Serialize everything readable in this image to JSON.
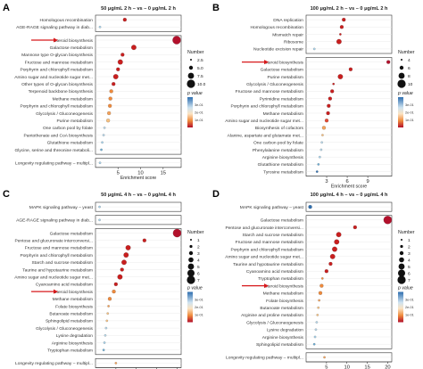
{
  "chart_data": [
    {
      "type": "scatter",
      "panel_label": "A",
      "title": "50 μg/mL 2 h – vs – 0 μg/mL 2 h",
      "xlabel": "Enrichment score",
      "xlim": [
        0,
        19
      ],
      "xticks": [
        5,
        10,
        15
      ],
      "highlight": "Steroid biosynthesis",
      "groups": [
        {
          "points": [
            {
              "label": "Homologous recombination",
              "x": 6.5,
              "size": 2,
              "color": "#c81e1e"
            },
            {
              "label": "AGE-RAGE signaling pathway in diab...",
              "x": 1.0,
              "size": 1,
              "color": "#a6d3ec"
            }
          ]
        },
        {
          "points": [
            {
              "label": "Steroid biosynthesis",
              "x": 18.0,
              "size": 5,
              "color": "#b2102b"
            },
            {
              "label": "Galactose metabolism",
              "x": 8.5,
              "size": 3,
              "color": "#c81e1e"
            },
            {
              "label": "Mannose type O-glycan biosynthesis",
              "x": 6.0,
              "size": 2,
              "color": "#c81e1e"
            },
            {
              "label": "Fructose and mannose metabolism",
              "x": 5.5,
              "size": 3,
              "color": "#c81e1e"
            },
            {
              "label": "Porphyrin and chlorophyll metabolism",
              "x": 5.0,
              "size": 2,
              "color": "#c81e1e"
            },
            {
              "label": "Amino sugar and nucleotide sugar met...",
              "x": 4.5,
              "size": 3,
              "color": "#c81e1e"
            },
            {
              "label": "Other types of O-glycan biosynthesis",
              "x": 4.0,
              "size": 2,
              "color": "#c81e1e"
            },
            {
              "label": "Terpenoid backbone biosynthesis",
              "x": 3.5,
              "size": 2,
              "color": "#ef8a3c"
            },
            {
              "label": "Methane metabolism",
              "x": 3.3,
              "size": 2,
              "color": "#ef8a3c"
            },
            {
              "label": "Porphyrin and chlorophyll metabolism",
              "x": 3.2,
              "size": 2,
              "color": "#ef8a3c"
            },
            {
              "label": "Glycolysis / Gluconeogenesis",
              "x": 3.0,
              "size": 2,
              "color": "#f4a25a"
            },
            {
              "label": "Purine metabolism",
              "x": 2.8,
              "size": 2,
              "color": "#f6c080"
            },
            {
              "label": "One carbon pool by folate",
              "x": 2.0,
              "size": 1,
              "color": "#b6d7ea"
            },
            {
              "label": "Pantothenate and CoA biosynthesis",
              "x": 1.8,
              "size": 1,
              "color": "#b6d7ea"
            },
            {
              "label": "Glutathione metabolism",
              "x": 1.5,
              "size": 1,
              "color": "#a6d3ec"
            },
            {
              "label": "Glycine, serine and threonine metaboli...",
              "x": 1.3,
              "size": 1,
              "color": "#6aaed6"
            }
          ]
        },
        {
          "points": [
            {
              "label": "Longevity regulating pathway – multipl...",
              "x": 1.0,
              "size": 1,
              "color": "#a6d3ec"
            }
          ]
        }
      ],
      "legend_size": {
        "title": "Number",
        "values": [
          "2.5",
          "5.0",
          "7.5",
          "10.0"
        ]
      },
      "legend_color": {
        "title": "p value",
        "ticks": [
          "1e-01",
          "2e-01",
          "3e-01"
        ]
      }
    },
    {
      "type": "scatter",
      "panel_label": "B",
      "title": "100 μg/mL 2 h – vs – 0 μg/mL 2 h",
      "xlabel": "Enrichment score",
      "xlim": [
        0,
        12.5
      ],
      "xticks": [
        3,
        6,
        9
      ],
      "highlight": "Steroid biosynthesis",
      "groups": [
        {
          "points": [
            {
              "label": "DNA replication",
              "x": 5.5,
              "size": 2,
              "color": "#c81e1e"
            },
            {
              "label": "Homologous recombination",
              "x": 5.2,
              "size": 2,
              "color": "#c81e1e"
            },
            {
              "label": "Mismatch repair",
              "x": 5.0,
              "size": 1,
              "color": "#c81e1e"
            },
            {
              "label": "Ribosome",
              "x": 4.8,
              "size": 3,
              "color": "#c81e1e"
            },
            {
              "label": "Nucleotide excision repair",
              "x": 1.2,
              "size": 1,
              "color": "#a6d3ec"
            }
          ]
        },
        {
          "points": [
            {
              "label": "Steroid biosynthesis",
              "x": 12.0,
              "size": 2,
              "color": "#b2102b"
            },
            {
              "label": "Galactose metabolism",
              "x": 6.5,
              "size": 2,
              "color": "#c81e1e"
            },
            {
              "label": "Purine metabolism",
              "x": 5.0,
              "size": 3,
              "color": "#c81e1e"
            },
            {
              "label": "Glycolysis / Gluconeogenesis",
              "x": 4.0,
              "size": 1,
              "color": "#c81e1e"
            },
            {
              "label": "Fructose and mannose metabolism",
              "x": 3.8,
              "size": 2,
              "color": "#c81e1e"
            },
            {
              "label": "Pyrimidine metabolism",
              "x": 3.5,
              "size": 2,
              "color": "#c81e1e"
            },
            {
              "label": "Porphyrin and chlorophyll metabolism",
              "x": 3.3,
              "size": 2,
              "color": "#c81e1e"
            },
            {
              "label": "Methane metabolism",
              "x": 3.2,
              "size": 2,
              "color": "#c81e1e"
            },
            {
              "label": "Amino sugar and nucleotide sugar met...",
              "x": 3.0,
              "size": 2,
              "color": "#e34a33"
            },
            {
              "label": "Biosynthesis of cofactors",
              "x": 2.6,
              "size": 2,
              "color": "#f4a25a"
            },
            {
              "label": "Alanine, aspartate and glutamate met...",
              "x": 2.4,
              "size": 1,
              "color": "#f6c080"
            },
            {
              "label": "One carbon pool by folate",
              "x": 2.3,
              "size": 1,
              "color": "#b6d7ea"
            },
            {
              "label": "Phenylalanine metabolism",
              "x": 2.2,
              "size": 1,
              "color": "#b6d7ea"
            },
            {
              "label": "Arginine biosynthesis",
              "x": 2.0,
              "size": 1,
              "color": "#a6d3ec"
            },
            {
              "label": "Glutathione metabolism",
              "x": 1.8,
              "size": 1,
              "color": "#6aaed6"
            },
            {
              "label": "Tyrosine metabolism",
              "x": 1.6,
              "size": 1,
              "color": "#2f6fb0"
            }
          ]
        }
      ],
      "legend_size": {
        "title": "Number",
        "values": [
          "4",
          "6",
          "8",
          "10"
        ]
      },
      "legend_color": {
        "title": "p value",
        "ticks": [
          "1e-01",
          "2e-01",
          "3e-01"
        ]
      }
    },
    {
      "type": "scatter",
      "panel_label": "C",
      "title": "50 μg/mL 4 h – vs – 0 μg/mL 4 h",
      "xlabel": "Enrichment score",
      "xlim": [
        0,
        21
      ],
      "xticks": [
        5,
        10,
        15,
        20
      ],
      "highlight": "Steroid biosynthesis",
      "groups": [
        {
          "points": [
            {
              "label": "MAPK signaling pathway – yeast",
              "x": 1.0,
              "size": 1,
              "color": "#a6d3ec"
            }
          ]
        },
        {
          "points": [
            {
              "label": "AGE-RAGE signaling pathway in diab...",
              "x": 1.0,
              "size": 1,
              "color": "#a6d3ec"
            }
          ]
        },
        {
          "points": [
            {
              "label": "Galactose metabolism",
              "x": 20.0,
              "size": 5,
              "color": "#b2102b"
            },
            {
              "label": "Pentose and glucuronate interconversi...",
              "x": 12.0,
              "size": 2,
              "color": "#c81e1e"
            },
            {
              "label": "Fructose and mannose metabolism",
              "x": 8.0,
              "size": 3,
              "color": "#c81e1e"
            },
            {
              "label": "Porphyrin and chlorophyll metabolism",
              "x": 7.5,
              "size": 3,
              "color": "#c81e1e"
            },
            {
              "label": "Starch and sucrose metabolism",
              "x": 7.0,
              "size": 3,
              "color": "#c81e1e"
            },
            {
              "label": "Taurine and hypotaurine metabolism",
              "x": 6.5,
              "size": 2,
              "color": "#c81e1e"
            },
            {
              "label": "Amino sugar and nucleotide sugar met...",
              "x": 6.0,
              "size": 3,
              "color": "#c81e1e"
            },
            {
              "label": "Cyanoamino acid metabolism",
              "x": 5.0,
              "size": 2,
              "color": "#c81e1e"
            },
            {
              "label": "Steroid biosynthesis",
              "x": 4.5,
              "size": 2,
              "color": "#ef8a3c"
            },
            {
              "label": "Methane metabolism",
              "x": 3.5,
              "size": 2,
              "color": "#ef8a3c"
            },
            {
              "label": "Folate biosynthesis",
              "x": 3.2,
              "size": 1,
              "color": "#f4a25a"
            },
            {
              "label": "Butanoate metabolism",
              "x": 3.0,
              "size": 1,
              "color": "#f6c080"
            },
            {
              "label": "Sphingolipid metabolism",
              "x": 2.8,
              "size": 1,
              "color": "#f6c080"
            },
            {
              "label": "Glycolysis / Gluconeogenesis",
              "x": 2.6,
              "size": 1,
              "color": "#b6d7ea"
            },
            {
              "label": "Lysine degradation",
              "x": 2.4,
              "size": 1,
              "color": "#b6d7ea"
            },
            {
              "label": "Arginine biosynthesis",
              "x": 2.2,
              "size": 1,
              "color": "#a6d3ec"
            },
            {
              "label": "Tryptophan metabolism",
              "x": 2.0,
              "size": 1,
              "color": "#6aaed6"
            }
          ]
        },
        {
          "points": [
            {
              "label": "Longevity regulating pathway – multipl...",
              "x": 5.0,
              "size": 1,
              "color": "#f4a25a"
            }
          ]
        }
      ],
      "legend_size": {
        "title": "Number",
        "values": [
          "1",
          "2",
          "3",
          "4",
          "5",
          "6",
          "7"
        ]
      },
      "legend_color": {
        "title": "p value",
        "ticks": [
          "1e-01",
          "2e-01",
          "3e-01"
        ]
      }
    },
    {
      "type": "scatter",
      "panel_label": "D",
      "title": "100 μg/mL 4 h – vs – 0 μg/mL 4 h",
      "xlabel": "Enrichment score",
      "xlim": [
        0,
        21
      ],
      "xticks": [
        5,
        10,
        15,
        20
      ],
      "highlight": "Steroid biosynthesis",
      "groups": [
        {
          "points": [
            {
              "label": "MAPK signaling pathway – yeast",
              "x": 1.0,
              "size": 2,
              "color": "#2f6fb0"
            }
          ]
        },
        {
          "points": [
            {
              "label": "Galactose metabolism",
              "x": 20.0,
              "size": 5,
              "color": "#b2102b"
            },
            {
              "label": "Pentose and glucuronate interconversi...",
              "x": 12.0,
              "size": 2,
              "color": "#c81e1e"
            },
            {
              "label": "Starch and sucrose metabolism",
              "x": 8.0,
              "size": 3,
              "color": "#c81e1e"
            },
            {
              "label": "Fructose and mannose metabolism",
              "x": 7.5,
              "size": 3,
              "color": "#c81e1e"
            },
            {
              "label": "Porphyrin and chlorophyll metabolism",
              "x": 7.0,
              "size": 3,
              "color": "#c81e1e"
            },
            {
              "label": "Amino sugar and nucleotide sugar met...",
              "x": 6.5,
              "size": 3,
              "color": "#c81e1e"
            },
            {
              "label": "Taurine and hypotaurine metabolism",
              "x": 6.0,
              "size": 2,
              "color": "#c81e1e"
            },
            {
              "label": "Cyanoamino acid metabolism",
              "x": 5.0,
              "size": 2,
              "color": "#c81e1e"
            },
            {
              "label": "Tryptophan metabolism",
              "x": 4.0,
              "size": 1,
              "color": "#ef8a3c"
            },
            {
              "label": "Steroid biosynthesis",
              "x": 3.8,
              "size": 2,
              "color": "#ef8a3c"
            },
            {
              "label": "Methane metabolism",
              "x": 3.5,
              "size": 2,
              "color": "#ef8a3c"
            },
            {
              "label": "Folate biosynthesis",
              "x": 3.2,
              "size": 1,
              "color": "#f4a25a"
            },
            {
              "label": "Butanoate metabolism",
              "x": 3.0,
              "size": 1,
              "color": "#f6c080"
            },
            {
              "label": "Arginine and proline metabolism",
              "x": 2.8,
              "size": 1,
              "color": "#f6c080"
            },
            {
              "label": "Glycolysis / Gluconeogenesis",
              "x": 2.6,
              "size": 1,
              "color": "#b6d7ea"
            },
            {
              "label": "Lysine degradation",
              "x": 2.4,
              "size": 1,
              "color": "#b6d7ea"
            },
            {
              "label": "Arginine biosynthesis",
              "x": 2.2,
              "size": 1,
              "color": "#a6d3ec"
            },
            {
              "label": "Sphingolipid metabolism",
              "x": 2.0,
              "size": 1,
              "color": "#6aaed6"
            }
          ]
        },
        {
          "points": [
            {
              "label": "Longevity regulating pathway – multipl...",
              "x": 4.5,
              "size": 1,
              "color": "#f4a25a"
            }
          ]
        }
      ],
      "legend_size": {
        "title": "Number",
        "values": [
          "1",
          "2",
          "3",
          "4",
          "5",
          "6",
          "7"
        ]
      },
      "legend_color": {
        "title": "p value",
        "ticks": [
          "1e-01",
          "2e-01",
          "3e-01"
        ]
      }
    }
  ]
}
